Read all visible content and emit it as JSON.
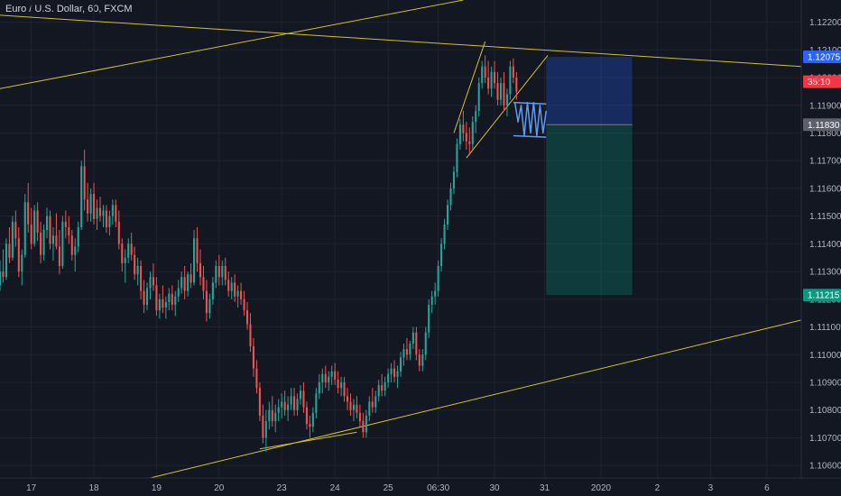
{
  "title": "Euro / U.S. Dollar, 60, FXCM",
  "chart_data": {
    "type": "candlestick",
    "title": "Euro / U.S. Dollar, 60, FXCM",
    "price_ticks": [
      "1.12200",
      "1.12100",
      "1.12000",
      "1.11900",
      "1.11800",
      "1.11700",
      "1.11600",
      "1.11500",
      "1.11400",
      "1.11300",
      "1.11200",
      "1.11100",
      "1.11000",
      "1.10900",
      "1.10800",
      "1.10700",
      "1.10600"
    ],
    "time_ticks": [
      {
        "label": "17",
        "pos": 1.0
      },
      {
        "label": "18",
        "pos": 3.0
      },
      {
        "label": "19",
        "pos": 5.0
      },
      {
        "label": "20",
        "pos": 7.0
      },
      {
        "label": "23",
        "pos": 9.0
      },
      {
        "label": "24",
        "pos": 10.7
      },
      {
        "label": "25",
        "pos": 12.4
      },
      {
        "label": "06:30",
        "pos": 14.0
      },
      {
        "label": "30",
        "pos": 15.8
      },
      {
        "label": "31",
        "pos": 17.4
      },
      {
        "label": "2020",
        "pos": 19.2
      },
      {
        "label": "2",
        "pos": 21.0
      },
      {
        "label": "3",
        "pos": 22.7
      },
      {
        "label": "6",
        "pos": 24.5
      }
    ],
    "ylim": [
      1.10555,
      1.1228
    ],
    "xlim": [
      0,
      25.6
    ],
    "price_tags": [
      {
        "label": "1.12075",
        "value": 1.12075,
        "color": "#2962ff"
      },
      {
        "label": "35:10",
        "value": 1.11985,
        "color": "#f23645"
      },
      {
        "label": "1.11830",
        "value": 1.1183,
        "color": "#5d606b"
      },
      {
        "label": "1.11215",
        "value": 1.11215,
        "color": "#089981"
      }
    ],
    "candles": [
      [
        0.0,
        1.1125,
        1.1134,
        1.1123,
        1.113
      ],
      [
        0.1,
        1.113,
        1.1138,
        1.1126,
        1.1128
      ],
      [
        0.2,
        1.1128,
        1.1142,
        1.1127,
        1.114
      ],
      [
        0.3,
        1.114,
        1.1146,
        1.1133,
        1.1135
      ],
      [
        0.4,
        1.1135,
        1.115,
        1.1134,
        1.1148
      ],
      [
        0.5,
        1.1148,
        1.1152,
        1.1139,
        1.1142
      ],
      [
        0.6,
        1.1142,
        1.1146,
        1.1128,
        1.113
      ],
      [
        0.7,
        1.113,
        1.1138,
        1.1125,
        1.1136
      ],
      [
        0.8,
        1.1136,
        1.1158,
        1.1135,
        1.1155
      ],
      [
        0.9,
        1.1155,
        1.1162,
        1.1144,
        1.1147
      ],
      [
        1.0,
        1.1147,
        1.1153,
        1.1138,
        1.114
      ],
      [
        1.1,
        1.114,
        1.1154,
        1.1139,
        1.1152
      ],
      [
        1.2,
        1.1152,
        1.1155,
        1.1141,
        1.1144
      ],
      [
        1.3,
        1.1144,
        1.1148,
        1.1133,
        1.1136
      ],
      [
        1.4,
        1.1136,
        1.1147,
        1.1134,
        1.1145
      ],
      [
        1.5,
        1.1145,
        1.1153,
        1.1142,
        1.115
      ],
      [
        1.6,
        1.115,
        1.1152,
        1.1138,
        1.114
      ],
      [
        1.7,
        1.114,
        1.1146,
        1.1134,
        1.1143
      ],
      [
        1.8,
        1.1143,
        1.1151,
        1.1138,
        1.1139
      ],
      [
        1.9,
        1.1139,
        1.1145,
        1.1129,
        1.1132
      ],
      [
        2.0,
        1.1132,
        1.115,
        1.1131,
        1.1148
      ],
      [
        2.1,
        1.1148,
        1.1152,
        1.1142,
        1.1146
      ],
      [
        2.2,
        1.1146,
        1.115,
        1.114,
        1.1143
      ],
      [
        2.3,
        1.1143,
        1.1145,
        1.1134,
        1.1136
      ],
      [
        2.4,
        1.1136,
        1.1142,
        1.113,
        1.1139
      ],
      [
        2.5,
        1.1139,
        1.1148,
        1.1137,
        1.1146
      ],
      [
        2.6,
        1.1146,
        1.117,
        1.1145,
        1.1168
      ],
      [
        2.7,
        1.1168,
        1.1174,
        1.1152,
        1.1156
      ],
      [
        2.8,
        1.1156,
        1.1162,
        1.1148,
        1.1151
      ],
      [
        2.9,
        1.1151,
        1.116,
        1.1148,
        1.1158
      ],
      [
        3.0,
        1.1158,
        1.1162,
        1.1147,
        1.1149
      ],
      [
        3.1,
        1.1149,
        1.1156,
        1.1145,
        1.1153
      ],
      [
        3.2,
        1.1153,
        1.1157,
        1.1148,
        1.115
      ],
      [
        3.3,
        1.115,
        1.1154,
        1.1146,
        1.1152
      ],
      [
        3.4,
        1.1152,
        1.1154,
        1.1144,
        1.1146
      ],
      [
        3.5,
        1.1146,
        1.1152,
        1.1143,
        1.115
      ],
      [
        3.6,
        1.115,
        1.1156,
        1.1147,
        1.1154
      ],
      [
        3.7,
        1.1154,
        1.1156,
        1.1146,
        1.1148
      ],
      [
        3.8,
        1.1148,
        1.1152,
        1.1138,
        1.114
      ],
      [
        3.9,
        1.114,
        1.1142,
        1.113,
        1.1133
      ],
      [
        4.0,
        1.1133,
        1.1138,
        1.1126,
        1.1135
      ],
      [
        4.1,
        1.1135,
        1.1142,
        1.1133,
        1.114
      ],
      [
        4.2,
        1.114,
        1.1144,
        1.1134,
        1.1136
      ],
      [
        4.3,
        1.1136,
        1.1139,
        1.1127,
        1.1129
      ],
      [
        4.4,
        1.1129,
        1.1135,
        1.1125,
        1.1132
      ],
      [
        4.5,
        1.1132,
        1.1134,
        1.112,
        1.1123
      ],
      [
        4.6,
        1.1123,
        1.1127,
        1.1115,
        1.1118
      ],
      [
        4.7,
        1.1118,
        1.1126,
        1.1116,
        1.1124
      ],
      [
        4.8,
        1.1124,
        1.113,
        1.112,
        1.1128
      ],
      [
        4.9,
        1.1128,
        1.1133,
        1.1123,
        1.1125
      ],
      [
        5.0,
        1.1125,
        1.1128,
        1.1114,
        1.1116
      ],
      [
        5.1,
        1.1116,
        1.1122,
        1.1113,
        1.112
      ],
      [
        5.2,
        1.112,
        1.1125,
        1.1115,
        1.1117
      ],
      [
        5.3,
        1.1117,
        1.1121,
        1.1113,
        1.1119
      ],
      [
        5.4,
        1.1119,
        1.1124,
        1.1116,
        1.1122
      ],
      [
        5.5,
        1.1122,
        1.1125,
        1.1116,
        1.1118
      ],
      [
        5.6,
        1.1118,
        1.1123,
        1.1114,
        1.1121
      ],
      [
        5.7,
        1.1121,
        1.1127,
        1.1119,
        1.1124
      ],
      [
        5.8,
        1.1124,
        1.113,
        1.1122,
        1.1128
      ],
      [
        5.9,
        1.1128,
        1.1132,
        1.112,
        1.1123
      ],
      [
        6.0,
        1.1123,
        1.113,
        1.1121,
        1.1129
      ],
      [
        6.1,
        1.1129,
        1.1133,
        1.1124,
        1.1126
      ],
      [
        6.2,
        1.1126,
        1.1145,
        1.1125,
        1.1142
      ],
      [
        6.3,
        1.1142,
        1.1146,
        1.113,
        1.1133
      ],
      [
        6.4,
        1.1133,
        1.1138,
        1.1125,
        1.1128
      ],
      [
        6.5,
        1.1128,
        1.1132,
        1.112,
        1.1123
      ],
      [
        6.6,
        1.1123,
        1.1127,
        1.1112,
        1.1115
      ],
      [
        6.7,
        1.1115,
        1.1122,
        1.1113,
        1.112
      ],
      [
        6.8,
        1.112,
        1.1128,
        1.1118,
        1.1126
      ],
      [
        6.9,
        1.1126,
        1.1134,
        1.1124,
        1.1132
      ],
      [
        7.0,
        1.1132,
        1.1136,
        1.1125,
        1.1128
      ],
      [
        7.1,
        1.1128,
        1.1134,
        1.1125,
        1.1132
      ],
      [
        7.2,
        1.1132,
        1.1135,
        1.1125,
        1.1127
      ],
      [
        7.3,
        1.1127,
        1.113,
        1.1121,
        1.1123
      ],
      [
        7.4,
        1.1123,
        1.1128,
        1.112,
        1.1126
      ],
      [
        7.5,
        1.1126,
        1.1129,
        1.1119,
        1.1121
      ],
      [
        7.6,
        1.1121,
        1.1125,
        1.1117,
        1.1123
      ],
      [
        7.7,
        1.1123,
        1.1126,
        1.1118,
        1.112
      ],
      [
        7.8,
        1.112,
        1.1123,
        1.1114,
        1.1116
      ],
      [
        7.9,
        1.1116,
        1.1119,
        1.1109,
        1.1111
      ],
      [
        8.0,
        1.1111,
        1.1115,
        1.1101,
        1.1103
      ],
      [
        8.1,
        1.1103,
        1.1106,
        1.1092,
        1.1095
      ],
      [
        8.2,
        1.1095,
        1.1098,
        1.1086,
        1.1088
      ],
      [
        8.3,
        1.1088,
        1.109,
        1.1076,
        1.1078
      ],
      [
        8.4,
        1.1078,
        1.1082,
        1.1068,
        1.107
      ],
      [
        8.5,
        1.107,
        1.108,
        1.1065,
        1.1076
      ],
      [
        8.6,
        1.1076,
        1.1083,
        1.1073,
        1.108
      ],
      [
        8.7,
        1.108,
        1.1085,
        1.1074,
        1.1076
      ],
      [
        8.8,
        1.1076,
        1.1082,
        1.1072,
        1.1079
      ],
      [
        8.9,
        1.1079,
        1.1084,
        1.1076,
        1.1081
      ],
      [
        9.0,
        1.1081,
        1.1086,
        1.1077,
        1.1083
      ],
      [
        9.1,
        1.1083,
        1.1087,
        1.1078,
        1.108
      ],
      [
        9.2,
        1.108,
        1.1085,
        1.1076,
        1.1082
      ],
      [
        9.3,
        1.1082,
        1.1088,
        1.108,
        1.1085
      ],
      [
        9.4,
        1.1085,
        1.1088,
        1.1078,
        1.108
      ],
      [
        9.5,
        1.108,
        1.1086,
        1.1078,
        1.1084
      ],
      [
        9.6,
        1.1084,
        1.1089,
        1.1082,
        1.1087
      ],
      [
        9.7,
        1.1087,
        1.109,
        1.1079,
        1.1081
      ],
      [
        9.8,
        1.1081,
        1.1083,
        1.1073,
        1.1075
      ],
      [
        9.9,
        1.1075,
        1.1078,
        1.107,
        1.1074
      ],
      [
        10.0,
        1.1074,
        1.1081,
        1.1072,
        1.1079
      ],
      [
        10.1,
        1.1079,
        1.1088,
        1.1077,
        1.1086
      ],
      [
        10.2,
        1.1086,
        1.1093,
        1.1084,
        1.109
      ],
      [
        10.3,
        1.109,
        1.1095,
        1.1086,
        1.1093
      ],
      [
        10.4,
        1.1093,
        1.1096,
        1.1088,
        1.109
      ],
      [
        10.5,
        1.109,
        1.1094,
        1.1087,
        1.1092
      ],
      [
        10.6,
        1.1092,
        1.1096,
        1.1089,
        1.1094
      ],
      [
        10.7,
        1.1094,
        1.1097,
        1.1089,
        1.1091
      ],
      [
        10.8,
        1.1091,
        1.1094,
        1.1086,
        1.1088
      ],
      [
        10.9,
        1.1088,
        1.1092,
        1.1085,
        1.109
      ],
      [
        11.0,
        1.109,
        1.1092,
        1.1083,
        1.1085
      ],
      [
        11.1,
        1.1085,
        1.1088,
        1.108,
        1.1083
      ],
      [
        11.2,
        1.1083,
        1.1086,
        1.1078,
        1.108
      ],
      [
        11.3,
        1.108,
        1.1084,
        1.1076,
        1.1082
      ],
      [
        11.4,
        1.1082,
        1.1085,
        1.1077,
        1.1079
      ],
      [
        11.5,
        1.1079,
        1.1082,
        1.1074,
        1.1076
      ],
      [
        11.6,
        1.1076,
        1.1079,
        1.107,
        1.1072
      ],
      [
        11.7,
        1.1072,
        1.108,
        1.107,
        1.1078
      ],
      [
        11.8,
        1.1078,
        1.1085,
        1.1076,
        1.1083
      ],
      [
        11.9,
        1.1083,
        1.1088,
        1.1079,
        1.1081
      ],
      [
        12.0,
        1.1081,
        1.1087,
        1.1079,
        1.1085
      ],
      [
        12.1,
        1.1085,
        1.1091,
        1.1083,
        1.1089
      ],
      [
        12.2,
        1.1089,
        1.1093,
        1.1085,
        1.1087
      ],
      [
        12.3,
        1.1087,
        1.1092,
        1.1085,
        1.109
      ],
      [
        12.4,
        1.109,
        1.1095,
        1.1088,
        1.1093
      ],
      [
        12.5,
        1.1093,
        1.1097,
        1.109,
        1.1095
      ],
      [
        12.6,
        1.1095,
        1.1098,
        1.109,
        1.1092
      ],
      [
        12.7,
        1.1092,
        1.1096,
        1.1088,
        1.1094
      ],
      [
        12.8,
        1.1094,
        1.1101,
        1.1092,
        1.1099
      ],
      [
        12.9,
        1.1099,
        1.1104,
        1.1096,
        1.1102
      ],
      [
        13.0,
        1.1102,
        1.1106,
        1.1098,
        1.11
      ],
      [
        13.1,
        1.11,
        1.1105,
        1.1098,
        1.1104
      ],
      [
        13.2,
        1.1104,
        1.111,
        1.1102,
        1.1108
      ],
      [
        13.3,
        1.1108,
        1.111,
        1.1098,
        1.11
      ],
      [
        13.4,
        1.11,
        1.1102,
        1.1094,
        1.1096
      ],
      [
        13.5,
        1.1096,
        1.1102,
        1.1094,
        1.11
      ],
      [
        13.6,
        1.11,
        1.111,
        1.1098,
        1.1108
      ],
      [
        13.7,
        1.1108,
        1.112,
        1.1106,
        1.1118
      ],
      [
        13.8,
        1.1118,
        1.1123,
        1.1115,
        1.1121
      ],
      [
        13.9,
        1.1121,
        1.1126,
        1.1118,
        1.1123
      ],
      [
        14.0,
        1.1123,
        1.1134,
        1.1121,
        1.1132
      ],
      [
        14.1,
        1.1132,
        1.1142,
        1.113,
        1.114
      ],
      [
        14.2,
        1.114,
        1.1149,
        1.1138,
        1.1147
      ],
      [
        14.3,
        1.1147,
        1.1156,
        1.1145,
        1.1154
      ],
      [
        14.4,
        1.1154,
        1.1162,
        1.1152,
        1.116
      ],
      [
        14.5,
        1.116,
        1.1168,
        1.1158,
        1.1166
      ],
      [
        14.6,
        1.1166,
        1.1178,
        1.1164,
        1.1176
      ],
      [
        14.7,
        1.1176,
        1.1185,
        1.1174,
        1.1183
      ],
      [
        14.8,
        1.1183,
        1.1188,
        1.1177,
        1.118
      ],
      [
        14.9,
        1.118,
        1.1184,
        1.1174,
        1.1177
      ],
      [
        15.0,
        1.1177,
        1.1182,
        1.1172,
        1.1176
      ],
      [
        15.1,
        1.1176,
        1.1186,
        1.1174,
        1.1184
      ],
      [
        15.2,
        1.1184,
        1.119,
        1.118,
        1.1188
      ],
      [
        15.3,
        1.1188,
        1.12,
        1.1186,
        1.1198
      ],
      [
        15.4,
        1.1198,
        1.1206,
        1.1196,
        1.1204
      ],
      [
        15.5,
        1.1204,
        1.1208,
        1.1198,
        1.12
      ],
      [
        15.6,
        1.12,
        1.1206,
        1.1194,
        1.1196
      ],
      [
        15.7,
        1.1196,
        1.1204,
        1.1193,
        1.1202
      ],
      [
        15.8,
        1.1202,
        1.1206,
        1.1196,
        1.1198
      ],
      [
        15.9,
        1.1198,
        1.1202,
        1.119,
        1.1192
      ],
      [
        16.0,
        1.1192,
        1.12,
        1.119,
        1.1198
      ],
      [
        16.1,
        1.1198,
        1.1202,
        1.1188,
        1.119
      ],
      [
        16.2,
        1.119,
        1.1196,
        1.1186,
        1.1194
      ],
      [
        16.3,
        1.1194,
        1.1206,
        1.1192,
        1.1204
      ],
      [
        16.4,
        1.1204,
        1.1207,
        1.1198,
        1.12
      ],
      [
        16.5,
        1.12,
        1.1202,
        1.1192,
        1.1195
      ]
    ],
    "drawings": {
      "trendlines": [
        {
          "x1": 0.0,
          "y1": 1.1196,
          "x2": 14.8,
          "y2": 1.1228
        },
        {
          "x1": 0.0,
          "y1": 1.12225,
          "x2": 25.6,
          "y2": 1.1204
        },
        {
          "x1": 4.8,
          "y1": 1.10555,
          "x2": 25.6,
          "y2": 1.11125
        },
        {
          "x1": 8.3,
          "y1": 1.1066,
          "x2": 11.4,
          "y2": 1.1072
        },
        {
          "x1": 14.5,
          "y1": 1.118,
          "x2": 15.5,
          "y2": 1.1213
        },
        {
          "x1": 14.9,
          "y1": 1.1171,
          "x2": 17.5,
          "y2": 1.1208
        }
      ],
      "forecast_path": [
        [
          16.45,
          1.1191
        ],
        [
          16.55,
          1.1184
        ],
        [
          16.65,
          1.119
        ],
        [
          16.75,
          1.1179
        ],
        [
          16.85,
          1.1191
        ],
        [
          16.95,
          1.118
        ],
        [
          17.05,
          1.1191
        ],
        [
          17.15,
          1.1179
        ],
        [
          17.25,
          1.119
        ],
        [
          17.35,
          1.118
        ],
        [
          17.45,
          1.1188
        ]
      ],
      "forecast_channel": {
        "top": [
          [
            16.4,
            1.1191
          ],
          [
            17.45,
            1.11905
          ]
        ],
        "bottom": [
          [
            16.4,
            1.1179
          ],
          [
            17.45,
            1.11785
          ]
        ]
      },
      "position": {
        "x1": 17.45,
        "x2": 20.2,
        "entry": 1.1183,
        "stop": 1.12075,
        "target": 1.11215
      }
    }
  }
}
